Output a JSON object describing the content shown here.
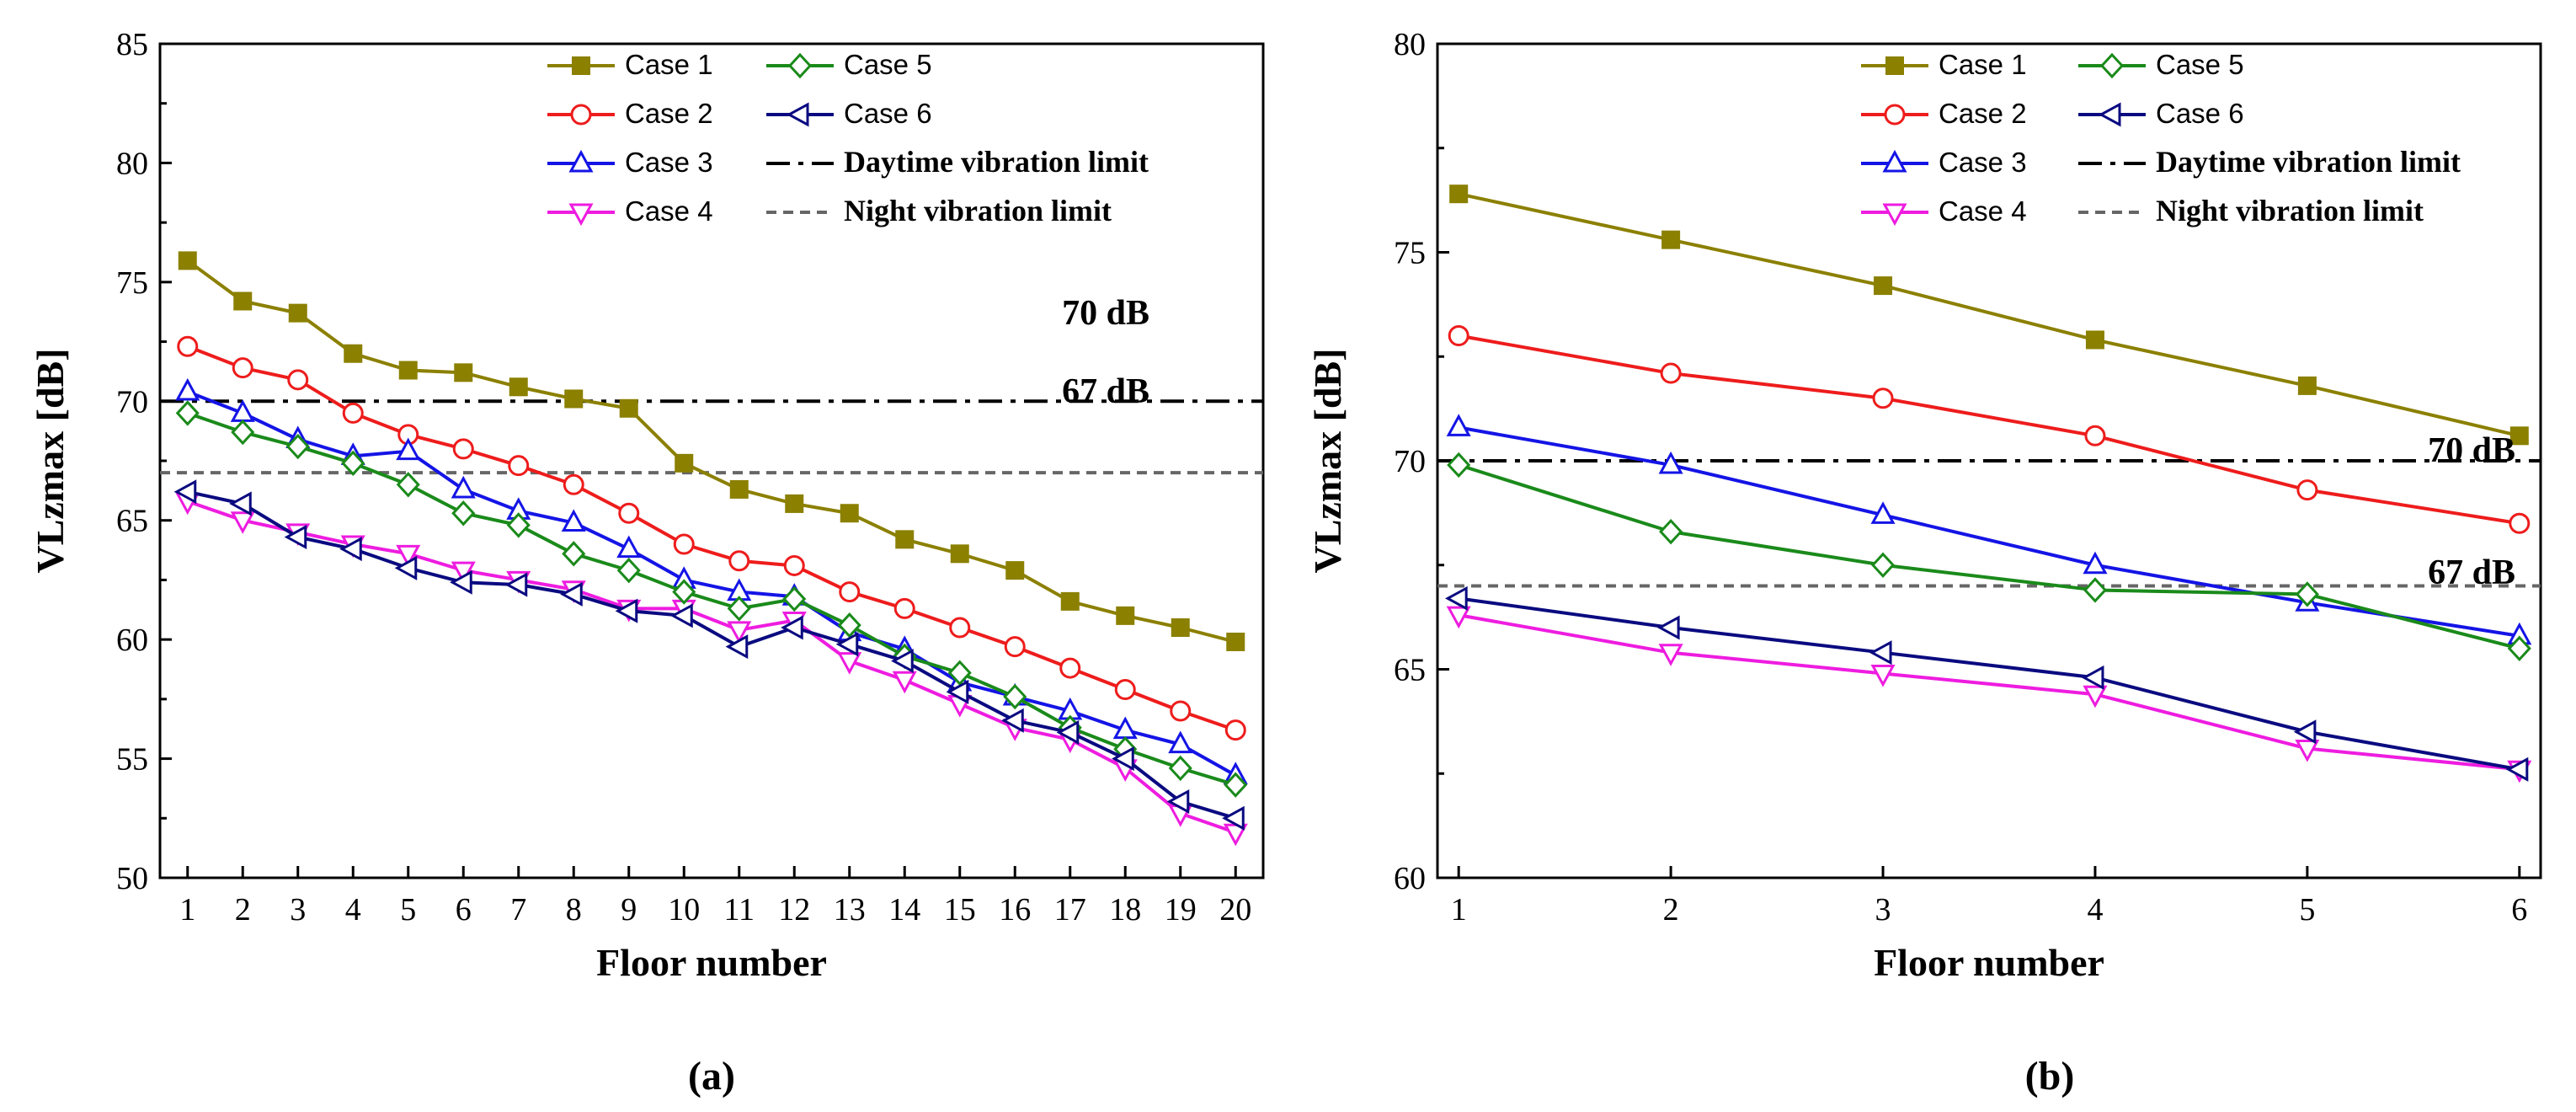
{
  "chart_data": [
    {
      "type": "line",
      "caption": "(a)",
      "xlabel": "Floor number",
      "ylabel": "VLzmax [dB]",
      "xlim": [
        0.5,
        20.5
      ],
      "ylim": [
        50,
        85
      ],
      "xticks": [
        1,
        2,
        3,
        4,
        5,
        6,
        7,
        8,
        9,
        10,
        11,
        12,
        13,
        14,
        15,
        16,
        17,
        18,
        19,
        20
      ],
      "yticks": [
        50,
        55,
        60,
        65,
        70,
        75,
        80,
        85
      ],
      "x": [
        1,
        2,
        3,
        4,
        5,
        6,
        7,
        8,
        9,
        10,
        11,
        12,
        13,
        14,
        15,
        16,
        17,
        18,
        19,
        20
      ],
      "series": [
        {
          "name": "Case 1",
          "color": "#8b8000",
          "marker": "square-filled",
          "values": [
            75.9,
            74.2,
            73.7,
            72.0,
            71.3,
            71.2,
            70.6,
            70.1,
            69.7,
            67.4,
            66.3,
            65.7,
            65.3,
            64.2,
            63.6,
            62.9,
            61.6,
            61.0,
            60.5,
            59.9
          ]
        },
        {
          "name": "Case 2",
          "color": "#ee1c1c",
          "marker": "circle-open",
          "values": [
            72.3,
            71.4,
            70.9,
            69.5,
            68.6,
            68.0,
            67.3,
            66.5,
            65.3,
            64.0,
            63.3,
            63.1,
            62.0,
            61.3,
            60.5,
            59.7,
            58.8,
            57.9,
            57.0,
            56.2
          ]
        },
        {
          "name": "Case 3",
          "color": "#1414e6",
          "marker": "triangle-up-open",
          "values": [
            70.4,
            69.5,
            68.4,
            67.7,
            67.9,
            66.3,
            65.4,
            64.9,
            63.8,
            62.5,
            62.0,
            61.8,
            60.3,
            59.6,
            58.2,
            57.6,
            57.0,
            56.2,
            55.6,
            54.3
          ]
        },
        {
          "name": "Case 4",
          "color": "#ee1ce0",
          "marker": "triangle-down-open",
          "values": [
            65.8,
            65.0,
            64.5,
            64.0,
            63.6,
            62.9,
            62.5,
            62.1,
            61.3,
            61.3,
            60.4,
            60.8,
            59.1,
            58.3,
            57.3,
            56.3,
            55.8,
            54.6,
            52.7,
            51.9
          ]
        },
        {
          "name": "Case 5",
          "color": "#1a8a1a",
          "marker": "diamond-open",
          "values": [
            69.5,
            68.7,
            68.1,
            67.4,
            66.5,
            65.3,
            64.8,
            63.6,
            62.9,
            62.0,
            61.3,
            61.7,
            60.6,
            59.3,
            58.6,
            57.6,
            56.3,
            55.4,
            54.6,
            53.9
          ]
        },
        {
          "name": "Case 6",
          "color": "#0a0a80",
          "marker": "triangle-left-open",
          "values": [
            66.2,
            65.7,
            64.3,
            63.8,
            63.0,
            62.4,
            62.3,
            61.9,
            61.2,
            61.0,
            59.7,
            60.5,
            59.8,
            59.1,
            57.8,
            56.6,
            56.1,
            55.0,
            53.2,
            52.5
          ]
        }
      ],
      "reference_lines": [
        {
          "name": "Daytime vibration limit",
          "y": 70,
          "style": "dash-dot",
          "color": "#000000"
        },
        {
          "name": "Night vibration limit",
          "y": 67,
          "style": "dash",
          "color": "#666666"
        }
      ],
      "annotations": [
        "70 dB",
        "67 dB"
      ],
      "legend": "top-right"
    },
    {
      "type": "line",
      "caption": "(b)",
      "xlabel": "Floor number",
      "ylabel": "VLzmax [dB]",
      "xlim": [
        0.9,
        6.1
      ],
      "ylim": [
        60,
        80
      ],
      "xticks": [
        1,
        2,
        3,
        4,
        5,
        6
      ],
      "yticks": [
        60,
        65,
        70,
        75,
        80
      ],
      "x": [
        1,
        2,
        3,
        4,
        5,
        6
      ],
      "series": [
        {
          "name": "Case 1",
          "color": "#8b8000",
          "marker": "square-filled",
          "values": [
            76.4,
            75.3,
            74.2,
            72.9,
            71.8,
            70.6
          ]
        },
        {
          "name": "Case 2",
          "color": "#ee1c1c",
          "marker": "circle-open",
          "values": [
            73.0,
            72.1,
            71.5,
            70.6,
            69.3,
            68.5
          ]
        },
        {
          "name": "Case 3",
          "color": "#1414e6",
          "marker": "triangle-up-open",
          "values": [
            70.8,
            69.9,
            68.7,
            67.5,
            66.6,
            65.8
          ]
        },
        {
          "name": "Case 4",
          "color": "#ee1ce0",
          "marker": "triangle-down-open",
          "values": [
            66.3,
            65.4,
            64.9,
            64.4,
            63.1,
            62.6
          ]
        },
        {
          "name": "Case 5",
          "color": "#1a8a1a",
          "marker": "diamond-open",
          "values": [
            69.9,
            68.3,
            67.5,
            66.9,
            66.8,
            65.5
          ]
        },
        {
          "name": "Case 6",
          "color": "#0a0a80",
          "marker": "triangle-left-open",
          "values": [
            66.7,
            66.0,
            65.4,
            64.8,
            63.5,
            62.6
          ]
        }
      ],
      "reference_lines": [
        {
          "name": "Daytime vibration limit",
          "y": 70,
          "style": "dash-dot",
          "color": "#000000"
        },
        {
          "name": "Night vibration limit",
          "y": 67,
          "style": "dash",
          "color": "#666666"
        }
      ],
      "annotations": [
        "70 dB",
        "67 dB"
      ],
      "legend": "top-right"
    }
  ]
}
